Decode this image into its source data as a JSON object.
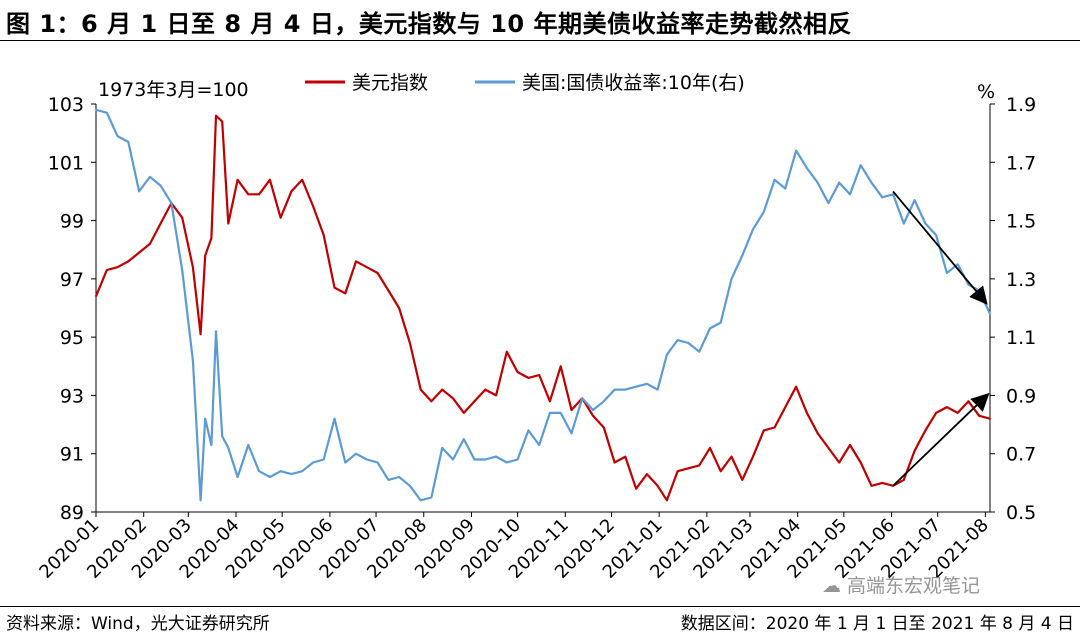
{
  "header": {
    "title": "图 1：6 月 1 日至 8 月 4 日，美元指数与 10 年期美债收益率走势截然相反"
  },
  "footer": {
    "source": "资料来源：Wind，光大证券研究所",
    "range": "数据区间：2020 年 1 月 1 日至 2021 年 8 月 4 日"
  },
  "watermark": {
    "text": "高端东宏观笔记"
  },
  "colors": {
    "dxy": "#c00000",
    "yield": "#5b9bd5",
    "arrow": "#000000"
  },
  "chart_data": {
    "type": "line",
    "title": "",
    "note": "1973年3月=100",
    "legend": [
      {
        "name": "美元指数",
        "axis": "left"
      },
      {
        "name": "美国:国债收益率:10年(右)",
        "axis": "right"
      }
    ],
    "left_axis": {
      "min": 89,
      "max": 103,
      "ticks": [
        "103",
        "101",
        "99",
        "97",
        "95",
        "93",
        "91",
        "89"
      ]
    },
    "right_axis": {
      "label": "%",
      "min": 0.5,
      "max": 1.9,
      "ticks": [
        "1.9",
        "1.7",
        "1.5",
        "1.3",
        "1.1",
        "0.9",
        "0.7",
        "0.5"
      ]
    },
    "x_start": "2020-01-01",
    "x_end": "2021-08-04",
    "x_ticks": [
      "2020-01",
      "2020-02",
      "2020-03",
      "2020-04",
      "2020-05",
      "2020-06",
      "2020-07",
      "2020-08",
      "2020-09",
      "2020-10",
      "2020-11",
      "2020-12",
      "2021-01",
      "2021-02",
      "2021-03",
      "2021-04",
      "2021-05",
      "2021-06",
      "2021-07",
      "2021-08"
    ],
    "series": [
      {
        "name": "美元指数",
        "axis": "left",
        "points": [
          [
            "2020-01-01",
            96.4
          ],
          [
            "2020-01-08",
            97.3
          ],
          [
            "2020-01-15",
            97.4
          ],
          [
            "2020-01-22",
            97.6
          ],
          [
            "2020-01-29",
            97.9
          ],
          [
            "2020-02-05",
            98.2
          ],
          [
            "2020-02-12",
            98.9
          ],
          [
            "2020-02-19",
            99.6
          ],
          [
            "2020-02-26",
            99.1
          ],
          [
            "2020-03-04",
            97.4
          ],
          [
            "2020-03-09",
            95.1
          ],
          [
            "2020-03-12",
            97.8
          ],
          [
            "2020-03-16",
            98.4
          ],
          [
            "2020-03-19",
            102.6
          ],
          [
            "2020-03-23",
            102.4
          ],
          [
            "2020-03-27",
            98.9
          ],
          [
            "2020-04-02",
            100.4
          ],
          [
            "2020-04-09",
            99.9
          ],
          [
            "2020-04-16",
            99.9
          ],
          [
            "2020-04-23",
            100.4
          ],
          [
            "2020-04-30",
            99.1
          ],
          [
            "2020-05-07",
            100.0
          ],
          [
            "2020-05-14",
            100.4
          ],
          [
            "2020-05-21",
            99.5
          ],
          [
            "2020-05-28",
            98.5
          ],
          [
            "2020-06-04",
            96.7
          ],
          [
            "2020-06-11",
            96.5
          ],
          [
            "2020-06-18",
            97.6
          ],
          [
            "2020-06-25",
            97.4
          ],
          [
            "2020-07-02",
            97.2
          ],
          [
            "2020-07-09",
            96.6
          ],
          [
            "2020-07-16",
            96.0
          ],
          [
            "2020-07-23",
            94.8
          ],
          [
            "2020-07-30",
            93.2
          ],
          [
            "2020-08-06",
            92.8
          ],
          [
            "2020-08-13",
            93.2
          ],
          [
            "2020-08-20",
            92.9
          ],
          [
            "2020-08-27",
            92.4
          ],
          [
            "2020-09-03",
            92.8
          ],
          [
            "2020-09-10",
            93.2
          ],
          [
            "2020-09-17",
            93.0
          ],
          [
            "2020-09-24",
            94.5
          ],
          [
            "2020-10-01",
            93.8
          ],
          [
            "2020-10-08",
            93.6
          ],
          [
            "2020-10-15",
            93.7
          ],
          [
            "2020-10-22",
            92.8
          ],
          [
            "2020-10-29",
            94.0
          ],
          [
            "2020-11-05",
            92.5
          ],
          [
            "2020-11-12",
            92.9
          ],
          [
            "2020-11-19",
            92.3
          ],
          [
            "2020-11-26",
            91.9
          ],
          [
            "2020-12-03",
            90.7
          ],
          [
            "2020-12-10",
            90.9
          ],
          [
            "2020-12-17",
            89.8
          ],
          [
            "2020-12-24",
            90.3
          ],
          [
            "2020-12-31",
            89.9
          ],
          [
            "2021-01-06",
            89.4
          ],
          [
            "2021-01-13",
            90.4
          ],
          [
            "2021-01-20",
            90.5
          ],
          [
            "2021-01-27",
            90.6
          ],
          [
            "2021-02-03",
            91.2
          ],
          [
            "2021-02-10",
            90.4
          ],
          [
            "2021-02-17",
            90.9
          ],
          [
            "2021-02-24",
            90.1
          ],
          [
            "2021-03-03",
            90.9
          ],
          [
            "2021-03-10",
            91.8
          ],
          [
            "2021-03-17",
            91.9
          ],
          [
            "2021-03-24",
            92.6
          ],
          [
            "2021-03-31",
            93.3
          ],
          [
            "2021-04-07",
            92.4
          ],
          [
            "2021-04-14",
            91.7
          ],
          [
            "2021-04-21",
            91.2
          ],
          [
            "2021-04-28",
            90.7
          ],
          [
            "2021-05-05",
            91.3
          ],
          [
            "2021-05-12",
            90.7
          ],
          [
            "2021-05-19",
            89.9
          ],
          [
            "2021-05-26",
            90.0
          ],
          [
            "2021-06-02",
            89.9
          ],
          [
            "2021-06-09",
            90.1
          ],
          [
            "2021-06-16",
            91.1
          ],
          [
            "2021-06-23",
            91.8
          ],
          [
            "2021-06-30",
            92.4
          ],
          [
            "2021-07-07",
            92.6
          ],
          [
            "2021-07-14",
            92.4
          ],
          [
            "2021-07-21",
            92.8
          ],
          [
            "2021-07-28",
            92.3
          ],
          [
            "2021-08-04",
            92.2
          ]
        ]
      },
      {
        "name": "美国:国债收益率:10年(右)",
        "axis": "right",
        "points": [
          [
            "2020-01-01",
            1.88
          ],
          [
            "2020-01-08",
            1.87
          ],
          [
            "2020-01-15",
            1.79
          ],
          [
            "2020-01-22",
            1.77
          ],
          [
            "2020-01-29",
            1.6
          ],
          [
            "2020-02-05",
            1.65
          ],
          [
            "2020-02-12",
            1.62
          ],
          [
            "2020-02-19",
            1.56
          ],
          [
            "2020-02-26",
            1.33
          ],
          [
            "2020-03-04",
            1.02
          ],
          [
            "2020-03-09",
            0.54
          ],
          [
            "2020-03-12",
            0.82
          ],
          [
            "2020-03-16",
            0.73
          ],
          [
            "2020-03-19",
            1.12
          ],
          [
            "2020-03-23",
            0.76
          ],
          [
            "2020-03-27",
            0.72
          ],
          [
            "2020-04-02",
            0.62
          ],
          [
            "2020-04-09",
            0.73
          ],
          [
            "2020-04-16",
            0.64
          ],
          [
            "2020-04-23",
            0.62
          ],
          [
            "2020-04-30",
            0.64
          ],
          [
            "2020-05-07",
            0.63
          ],
          [
            "2020-05-14",
            0.64
          ],
          [
            "2020-05-21",
            0.67
          ],
          [
            "2020-05-28",
            0.68
          ],
          [
            "2020-06-04",
            0.82
          ],
          [
            "2020-06-11",
            0.67
          ],
          [
            "2020-06-18",
            0.7
          ],
          [
            "2020-06-25",
            0.68
          ],
          [
            "2020-07-02",
            0.67
          ],
          [
            "2020-07-09",
            0.61
          ],
          [
            "2020-07-16",
            0.62
          ],
          [
            "2020-07-23",
            0.59
          ],
          [
            "2020-07-30",
            0.54
          ],
          [
            "2020-08-06",
            0.55
          ],
          [
            "2020-08-13",
            0.72
          ],
          [
            "2020-08-20",
            0.68
          ],
          [
            "2020-08-27",
            0.75
          ],
          [
            "2020-09-03",
            0.68
          ],
          [
            "2020-09-10",
            0.68
          ],
          [
            "2020-09-17",
            0.69
          ],
          [
            "2020-09-24",
            0.67
          ],
          [
            "2020-10-01",
            0.68
          ],
          [
            "2020-10-08",
            0.78
          ],
          [
            "2020-10-15",
            0.73
          ],
          [
            "2020-10-22",
            0.84
          ],
          [
            "2020-10-29",
            0.84
          ],
          [
            "2020-11-05",
            0.77
          ],
          [
            "2020-11-12",
            0.89
          ],
          [
            "2020-11-19",
            0.85
          ],
          [
            "2020-11-26",
            0.88
          ],
          [
            "2020-12-03",
            0.92
          ],
          [
            "2020-12-10",
            0.92
          ],
          [
            "2020-12-17",
            0.93
          ],
          [
            "2020-12-24",
            0.94
          ],
          [
            "2020-12-31",
            0.92
          ],
          [
            "2021-01-06",
            1.04
          ],
          [
            "2021-01-13",
            1.09
          ],
          [
            "2021-01-20",
            1.08
          ],
          [
            "2021-01-27",
            1.05
          ],
          [
            "2021-02-03",
            1.13
          ],
          [
            "2021-02-10",
            1.15
          ],
          [
            "2021-02-17",
            1.3
          ],
          [
            "2021-02-24",
            1.38
          ],
          [
            "2021-03-03",
            1.47
          ],
          [
            "2021-03-10",
            1.53
          ],
          [
            "2021-03-17",
            1.64
          ],
          [
            "2021-03-24",
            1.61
          ],
          [
            "2021-03-31",
            1.74
          ],
          [
            "2021-04-07",
            1.68
          ],
          [
            "2021-04-14",
            1.63
          ],
          [
            "2021-04-21",
            1.56
          ],
          [
            "2021-04-28",
            1.63
          ],
          [
            "2021-05-05",
            1.59
          ],
          [
            "2021-05-12",
            1.69
          ],
          [
            "2021-05-19",
            1.63
          ],
          [
            "2021-05-26",
            1.58
          ],
          [
            "2021-06-02",
            1.59
          ],
          [
            "2021-06-09",
            1.49
          ],
          [
            "2021-06-16",
            1.57
          ],
          [
            "2021-06-23",
            1.49
          ],
          [
            "2021-06-30",
            1.45
          ],
          [
            "2021-07-07",
            1.32
          ],
          [
            "2021-07-14",
            1.35
          ],
          [
            "2021-07-21",
            1.28
          ],
          [
            "2021-07-28",
            1.26
          ],
          [
            "2021-08-04",
            1.18
          ]
        ]
      }
    ],
    "annotations": [
      {
        "type": "arrow",
        "from": [
          "2021-06-02",
          1.6,
          "right"
        ],
        "to": [
          "2021-08-01",
          1.22,
          "right"
        ]
      },
      {
        "type": "arrow",
        "from": [
          "2021-06-02",
          89.9,
          "left"
        ],
        "to": [
          "2021-08-02",
          93.0,
          "left"
        ]
      }
    ]
  }
}
